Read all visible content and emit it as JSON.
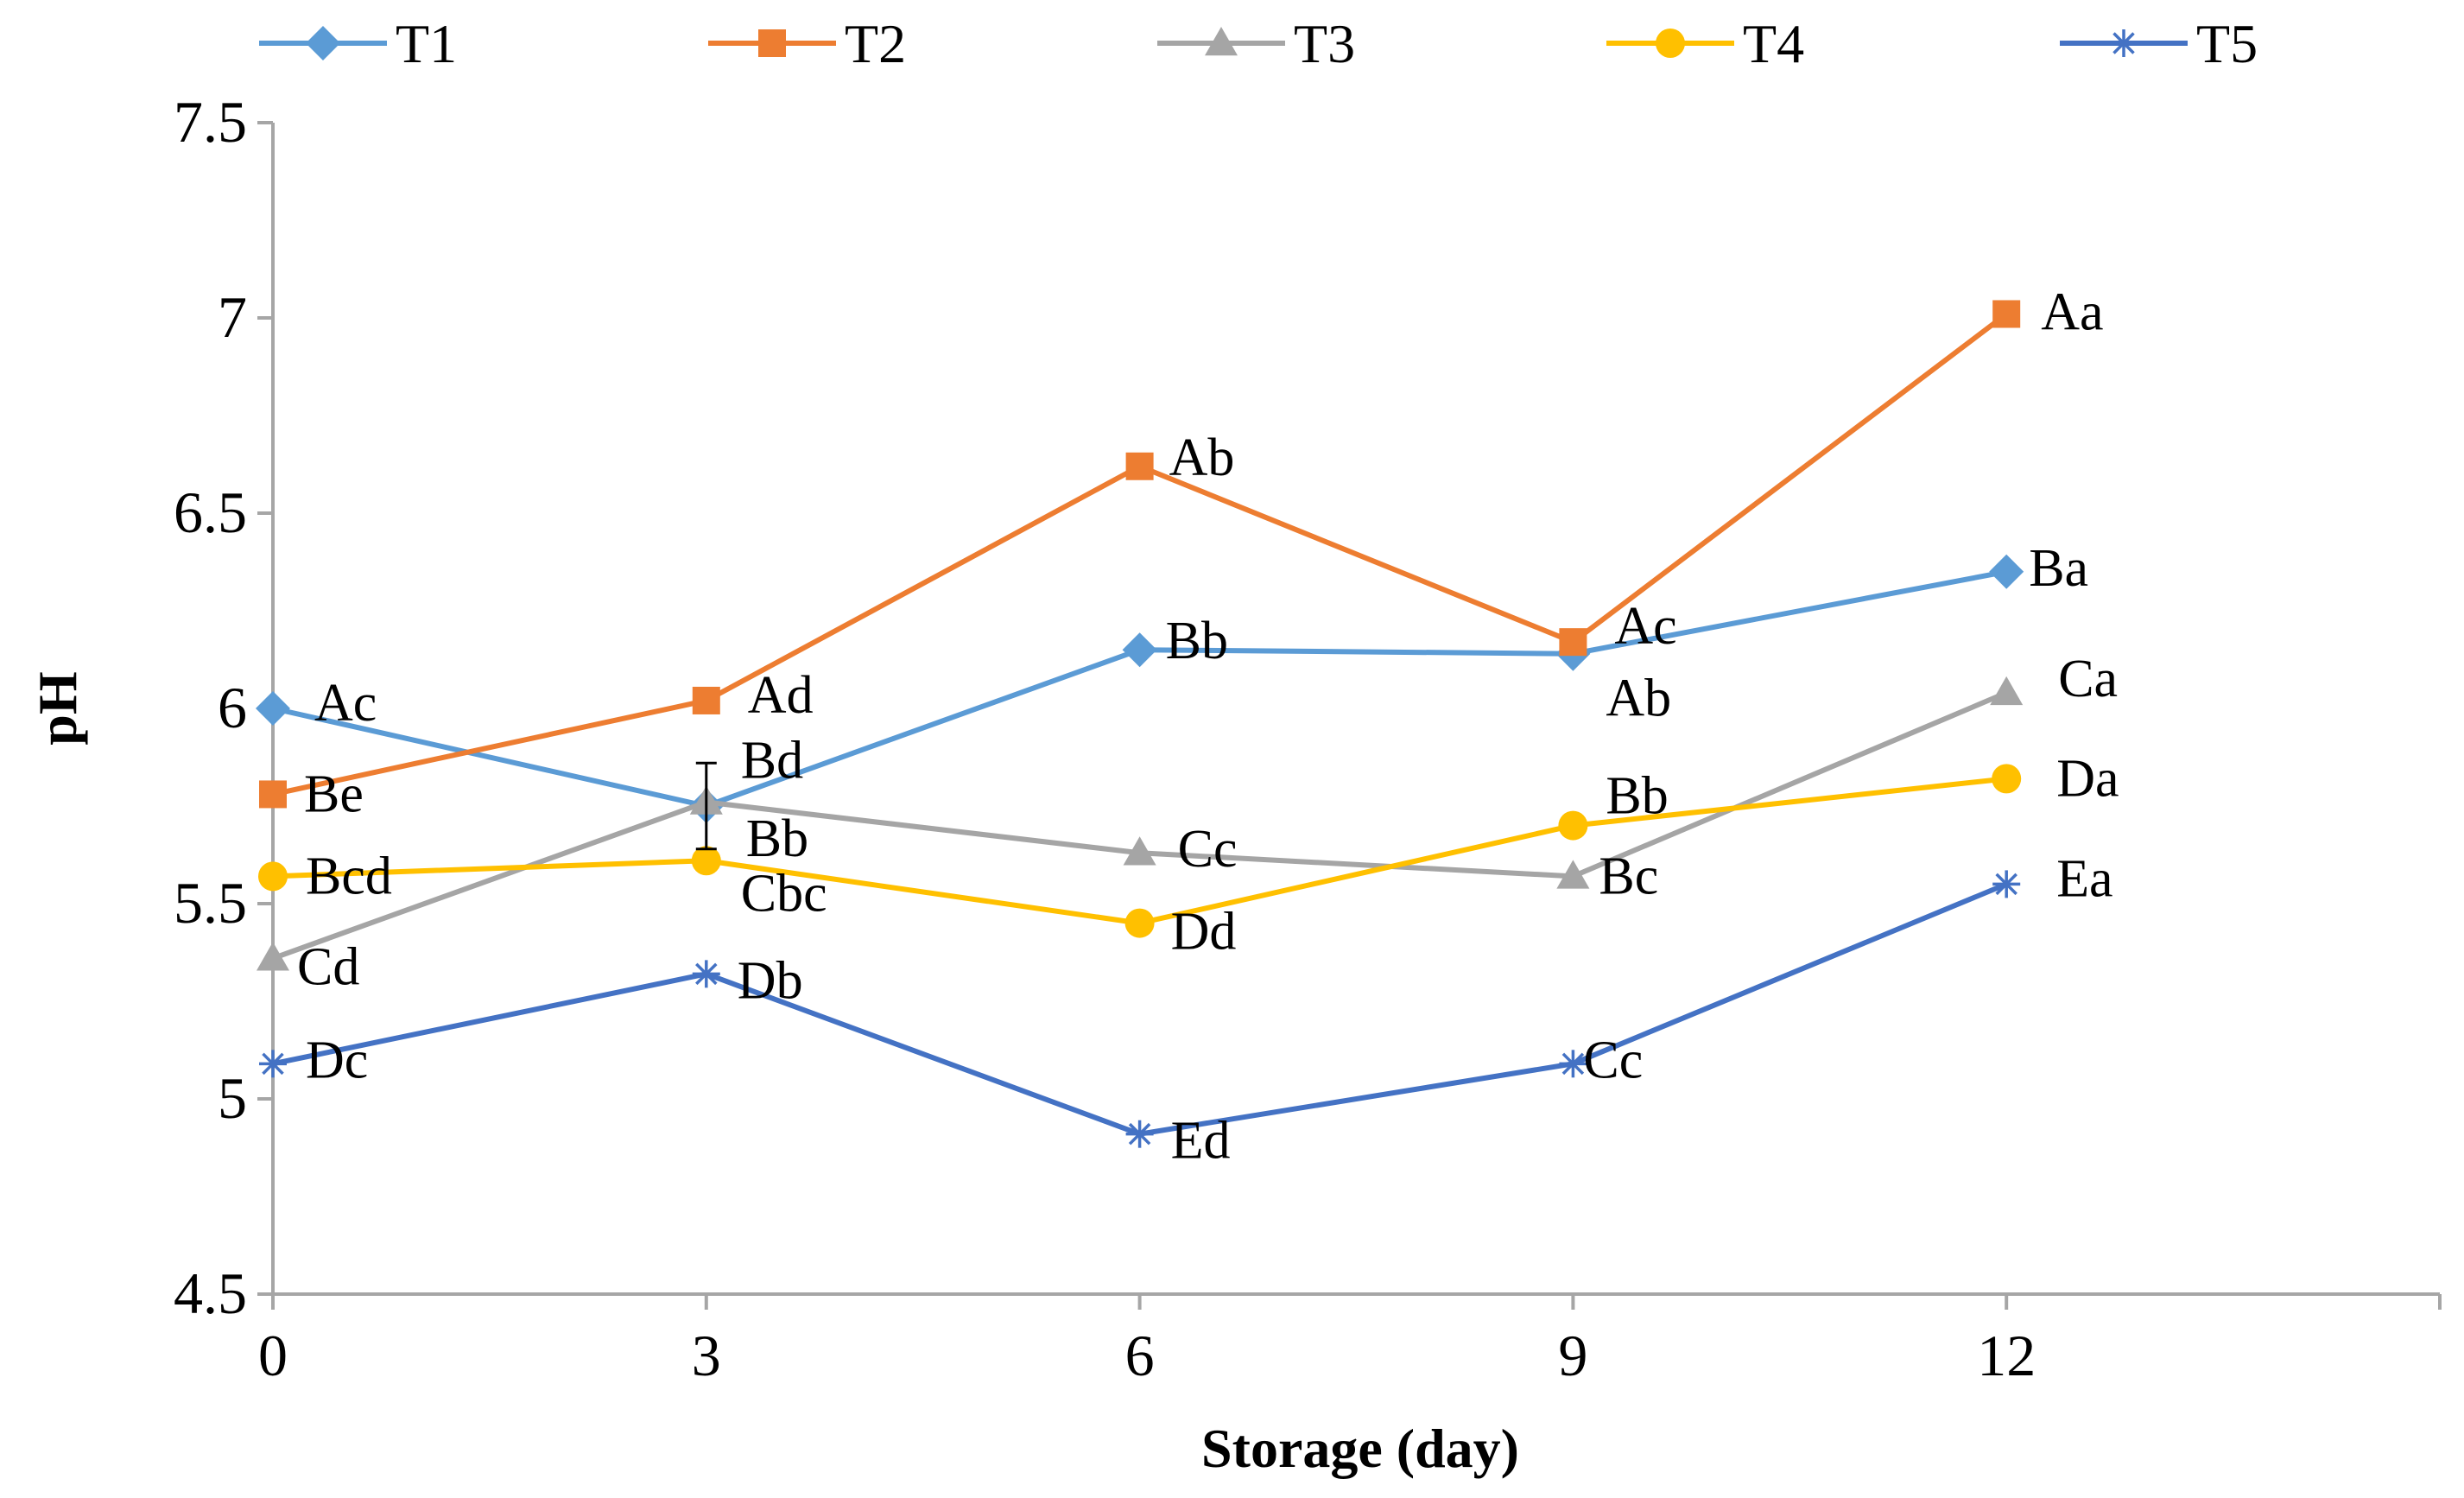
{
  "chart_data": {
    "type": "line",
    "title": "",
    "xlabel": "Storage (day)",
    "ylabel": "pH",
    "x": [
      0,
      3,
      6,
      9,
      12
    ],
    "xlim": [
      0,
      15
    ],
    "ylim": [
      4.5,
      7.5
    ],
    "x_ticks": [
      0,
      3,
      6,
      9,
      12
    ],
    "x_tick_labels": [
      "0",
      "3",
      "6",
      "9",
      "12"
    ],
    "y_ticks": [
      4.5,
      5,
      5.5,
      6,
      6.5,
      7,
      7.5
    ],
    "y_tick_labels": [
      "4.5",
      "5",
      "5.5",
      "6",
      "6.5",
      "7",
      "7.5"
    ],
    "grid": false,
    "legend_position": "top",
    "series": [
      {
        "name": "T1",
        "marker": "diamond",
        "color": "#5B9BD5",
        "values": [
          6.0,
          5.75,
          6.15,
          6.14,
          6.35
        ],
        "labels": [
          "Ac",
          "Bb",
          "Bb",
          "Ab",
          "Ba"
        ]
      },
      {
        "name": "T2",
        "marker": "square",
        "color": "#ED7D31",
        "values": [
          5.78,
          6.02,
          6.62,
          6.17,
          7.01
        ],
        "labels": [
          "Be",
          "Ad",
          "Ab",
          "Ac",
          "Aa"
        ]
      },
      {
        "name": "T3",
        "marker": "triangle",
        "color": "#A5A5A5",
        "values": [
          5.36,
          5.76,
          5.63,
          5.57,
          6.04
        ],
        "labels": [
          "Cd",
          "Bd",
          "Cc",
          "Bc",
          "Ca"
        ]
      },
      {
        "name": "T4",
        "marker": "circle",
        "color": "#FFC000",
        "values": [
          5.57,
          5.61,
          5.45,
          5.7,
          5.82
        ],
        "labels": [
          "Bcd",
          "Cbc",
          "Dd",
          "Bb",
          "Da"
        ]
      },
      {
        "name": "T5",
        "marker": "asterisk",
        "color": "#4472C4",
        "values": [
          5.09,
          5.32,
          4.91,
          5.09,
          5.55
        ],
        "labels": [
          "Dc",
          "Db",
          "Ed",
          "Cc",
          "Ea"
        ]
      }
    ],
    "error_bars": [
      {
        "series": "T1",
        "x": 3,
        "value": 5.75,
        "error": 0.11
      }
    ]
  }
}
